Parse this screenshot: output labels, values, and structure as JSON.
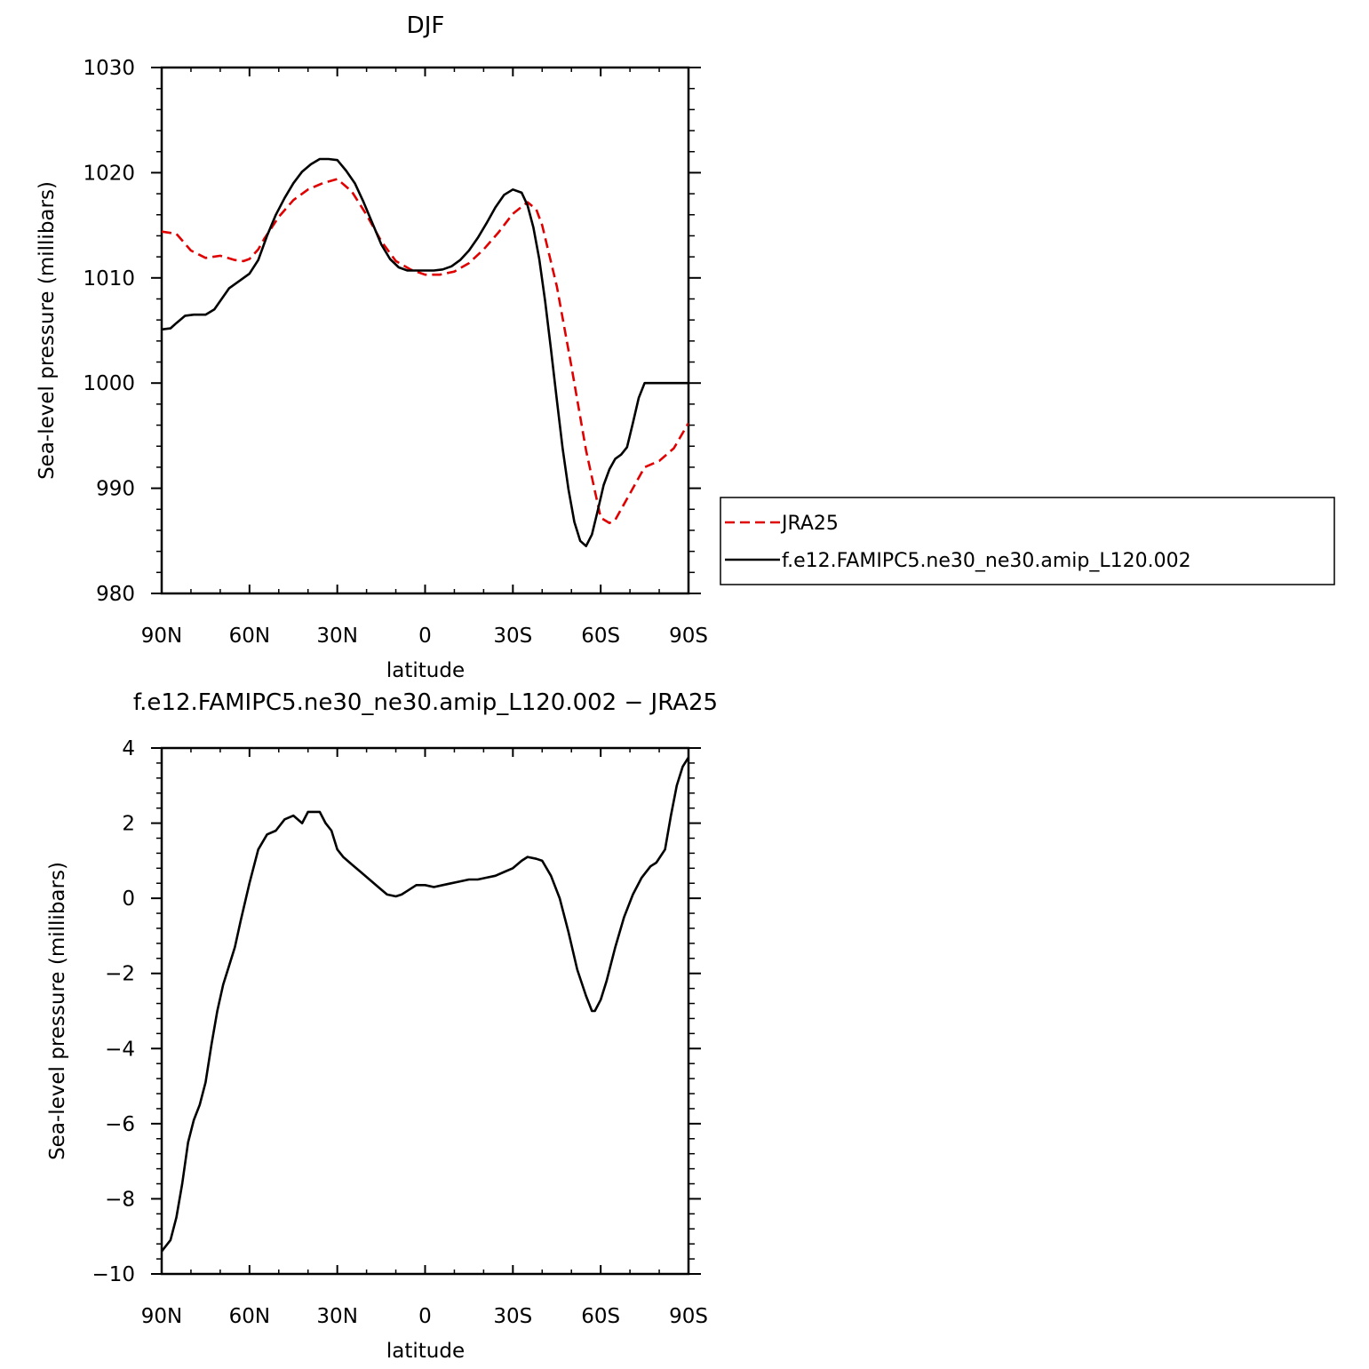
{
  "chart_data": [
    {
      "type": "line",
      "title": "DJF",
      "xlabel": "latitude",
      "ylabel": "Sea-level pressure (millibars)",
      "xlim": [
        90,
        -90
      ],
      "ylim": [
        980,
        1030
      ],
      "x_ticks": [
        90,
        60,
        30,
        0,
        -30,
        -60,
        -90
      ],
      "x_tick_labels": [
        "90N",
        "60N",
        "30N",
        "0",
        "30S",
        "60S",
        "90S"
      ],
      "y_ticks": [
        980,
        990,
        1000,
        1010,
        1020,
        1030
      ],
      "y_tick_labels": [
        "980",
        "990",
        "1000",
        "1010",
        "1020",
        "1030"
      ],
      "grid": false,
      "legend": "right",
      "series": [
        {
          "name": "JRA25",
          "color": "#e00000",
          "dash": "dashed",
          "x": [
            90,
            85,
            80,
            75,
            70,
            65,
            62,
            60,
            57,
            55,
            50,
            45,
            40,
            35,
            30,
            25,
            20,
            15,
            10,
            5,
            0,
            -5,
            -10,
            -15,
            -20,
            -25,
            -30,
            -35,
            -38,
            -40,
            -45,
            -50,
            -55,
            -60,
            -63,
            -65,
            -70,
            -75,
            -80,
            -85,
            -90
          ],
          "values": [
            1014.4,
            1014.2,
            1012.6,
            1011.9,
            1012.1,
            1011.7,
            1011.6,
            1011.8,
            1012.7,
            1013.7,
            1015.8,
            1017.4,
            1018.4,
            1019.0,
            1019.4,
            1018.2,
            1016.0,
            1013.5,
            1011.6,
            1010.8,
            1010.3,
            1010.3,
            1010.6,
            1011.4,
            1012.7,
            1014.3,
            1016.1,
            1017.2,
            1016.5,
            1015.0,
            1009.2,
            1001.6,
            993.6,
            987.2,
            986.7,
            987.0,
            989.5,
            992.0,
            992.6,
            993.8,
            996.2
          ]
        },
        {
          "name": "f.e12.FAMIPC5.ne30_ne30.amip_L120.002",
          "color": "#000000",
          "dash": "solid",
          "x": [
            90,
            87,
            85,
            82,
            79,
            75,
            72,
            67,
            63,
            60,
            57,
            54,
            51,
            48,
            45,
            42,
            39,
            36,
            33,
            30,
            27,
            24,
            21,
            18,
            15,
            12,
            9,
            6,
            3,
            0,
            -3,
            -6,
            -9,
            -12,
            -15,
            -18,
            -21,
            -24,
            -27,
            -30,
            -33,
            -35,
            -37,
            -39,
            -41,
            -43,
            -45,
            -47,
            -49,
            -51,
            -53,
            -55,
            -57,
            -59,
            -61,
            -63,
            -65,
            -67,
            -69,
            -71,
            -73,
            -75,
            -77,
            -79,
            -81,
            -83,
            -85,
            -87,
            -90
          ],
          "values": [
            1005.1,
            1005.2,
            1005.7,
            1006.4,
            1006.5,
            1006.5,
            1007.0,
            1009.0,
            1009.8,
            1010.4,
            1011.7,
            1014.0,
            1016.0,
            1017.6,
            1019.0,
            1020.1,
            1020.8,
            1021.3,
            1021.3,
            1021.2,
            1020.2,
            1019.0,
            1017.2,
            1015.2,
            1013.2,
            1011.8,
            1011.0,
            1010.7,
            1010.7,
            1010.7,
            1010.7,
            1010.8,
            1011.1,
            1011.7,
            1012.6,
            1013.8,
            1015.2,
            1016.7,
            1017.9,
            1018.4,
            1018.1,
            1016.9,
            1014.8,
            1011.8,
            1007.8,
            1003.2,
            998.4,
            993.8,
            989.9,
            986.8,
            985.0,
            984.5,
            985.6,
            987.9,
            990.3,
            991.8,
            992.8,
            993.2,
            993.9,
            996.2,
            998.6,
            1000.0,
            1000.0,
            1000.0,
            1000.0,
            1000.0,
            1000.0,
            1000.0,
            1000.0
          ]
        }
      ]
    },
    {
      "type": "line",
      "title": "f.e12.FAMIPC5.ne30_ne30.amip_L120.002 − JRA25",
      "xlabel": "latitude",
      "ylabel": "Sea-level pressure (millibars)",
      "xlim": [
        90,
        -90
      ],
      "ylim": [
        -10,
        4
      ],
      "x_ticks": [
        90,
        60,
        30,
        0,
        -30,
        -60,
        -90
      ],
      "x_tick_labels": [
        "90N",
        "60N",
        "30N",
        "0",
        "30S",
        "60S",
        "90S"
      ],
      "y_ticks": [
        -10,
        -8,
        -6,
        -4,
        -2,
        0,
        2,
        4
      ],
      "y_tick_labels": [
        "−10",
        "−8",
        "−6",
        "−4",
        "−2",
        "0",
        "2",
        "4"
      ],
      "grid": false,
      "series": [
        {
          "color": "#000000",
          "dash": "solid",
          "x": [
            90,
            87,
            85,
            83,
            81,
            79,
            77,
            75,
            73,
            71,
            69,
            67,
            65,
            63,
            60,
            57,
            54,
            51,
            48,
            45,
            42,
            40,
            38,
            36,
            34,
            32,
            30,
            28,
            25,
            22,
            19,
            16,
            13,
            10,
            8,
            6,
            3,
            0,
            -3,
            -6,
            -9,
            -12,
            -15,
            -18,
            -21,
            -24,
            -27,
            -30,
            -33,
            -35,
            -38,
            -40,
            -43,
            -46,
            -49,
            -52,
            -55,
            -57,
            -58,
            -60,
            -62,
            -65,
            -68,
            -71,
            -74,
            -77,
            -79,
            -82,
            -84,
            -86,
            -88,
            -90
          ],
          "values": [
            -9.4,
            -9.1,
            -8.5,
            -7.6,
            -6.5,
            -5.9,
            -5.5,
            -4.9,
            -3.9,
            -3.0,
            -2.3,
            -1.8,
            -1.3,
            -0.6,
            0.4,
            1.3,
            1.7,
            1.8,
            2.1,
            2.2,
            2.0,
            2.3,
            2.3,
            2.3,
            2.0,
            1.8,
            1.3,
            1.1,
            0.9,
            0.7,
            0.5,
            0.3,
            0.1,
            0.05,
            0.1,
            0.2,
            0.35,
            0.35,
            0.3,
            0.35,
            0.4,
            0.45,
            0.5,
            0.5,
            0.55,
            0.6,
            0.7,
            0.8,
            1.0,
            1.1,
            1.05,
            1.0,
            0.6,
            0.0,
            -0.9,
            -1.9,
            -2.6,
            -3.0,
            -3.0,
            -2.7,
            -2.2,
            -1.3,
            -0.5,
            0.1,
            0.55,
            0.85,
            0.95,
            1.3,
            2.2,
            3.0,
            3.5,
            3.75
          ]
        }
      ]
    }
  ]
}
